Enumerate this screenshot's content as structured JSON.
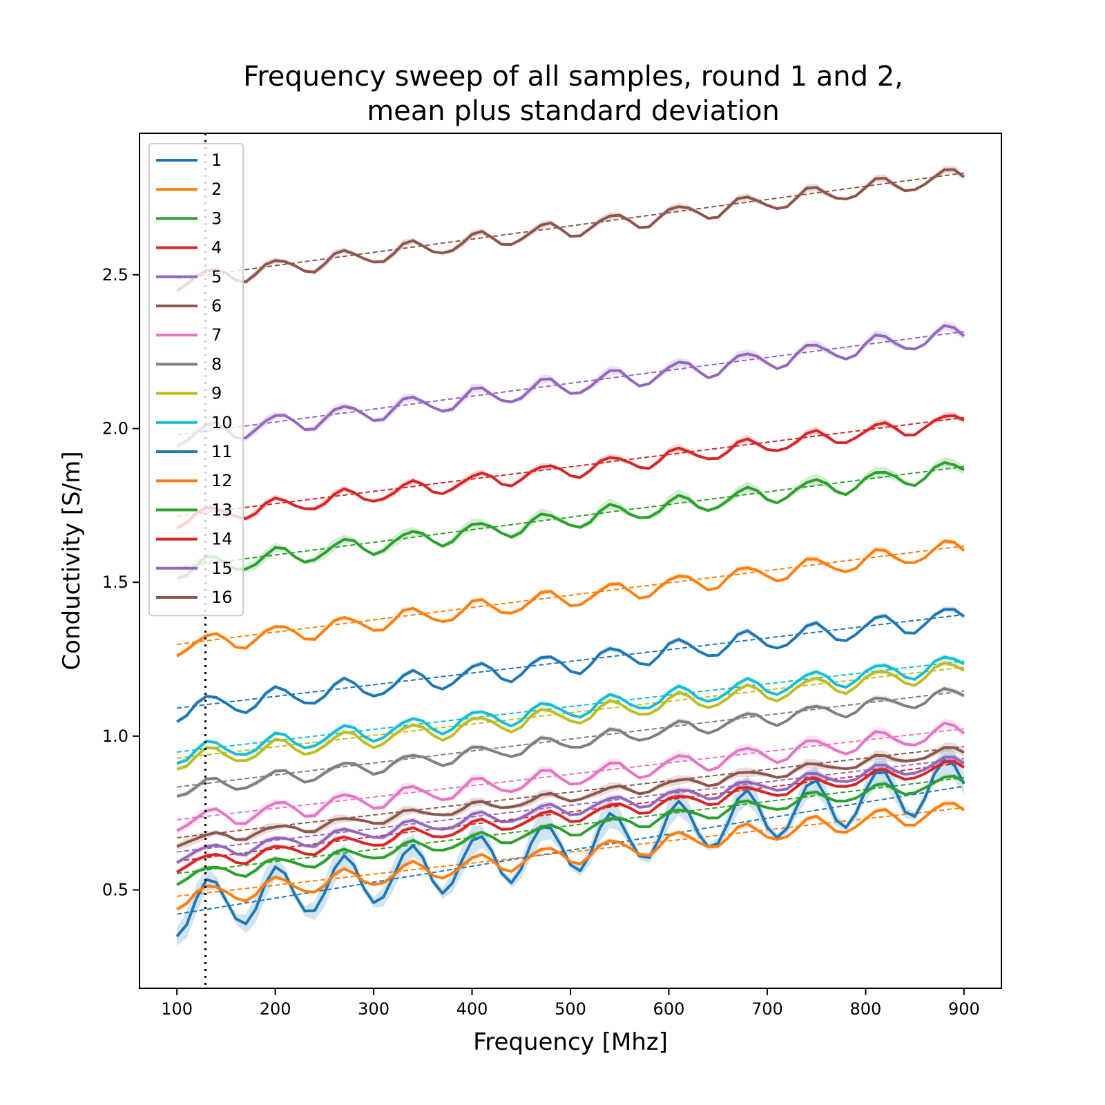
{
  "chart_data": {
    "type": "line",
    "title_lines": [
      "Frequency sweep of all samples, round 1 and 2,",
      "mean plus standard deviation"
    ],
    "xlabel": "Frequency [Mhz]",
    "ylabel": "Conductivity [S/m]",
    "xlim": [
      62,
      938
    ],
    "ylim": [
      0.18,
      2.96
    ],
    "xticks": [
      100,
      200,
      300,
      400,
      500,
      600,
      700,
      800,
      900
    ],
    "yticks": [
      0.5,
      1.0,
      1.5,
      2.0,
      2.5
    ],
    "xtick_labels": [
      "100",
      "200",
      "300",
      "400",
      "500",
      "600",
      "700",
      "800",
      "900"
    ],
    "ytick_labels": [
      "0.5",
      "1.0",
      "1.5",
      "2.0",
      "2.5"
    ],
    "vertical_marker_x": 129,
    "legend_position": "upper-left",
    "x_start": 100,
    "x_step": 10,
    "x_end": 900,
    "grid": false,
    "series": [
      {
        "name": "1",
        "color": "#1f77b4",
        "start": 0.35,
        "slope_per_100mhz": 0.052,
        "ripple": 0.085,
        "phase": 1.55,
        "std": 0.03
      },
      {
        "name": "2",
        "color": "#ff7f0e",
        "start": 0.44,
        "slope_per_100mhz": 0.036,
        "ripple": 0.032,
        "phase": 1.55,
        "std": 0.006
      },
      {
        "name": "3",
        "color": "#2ca02c",
        "start": 0.52,
        "slope_per_100mhz": 0.039,
        "ripple": 0.022,
        "phase": 1.55,
        "std": 0.006
      },
      {
        "name": "4",
        "color": "#d62728",
        "start": 0.56,
        "slope_per_100mhz": 0.04,
        "ripple": 0.022,
        "phase": 1.55,
        "std": 0.006
      },
      {
        "name": "5",
        "color": "#9467bd",
        "start": 0.59,
        "slope_per_100mhz": 0.038,
        "ripple": 0.022,
        "phase": 1.55,
        "std": 0.008
      },
      {
        "name": "6",
        "color": "#8c564b",
        "start": 0.64,
        "slope_per_100mhz": 0.037,
        "ripple": 0.016,
        "phase": 1.55,
        "std": 0.01
      },
      {
        "name": "7",
        "color": "#e377c2",
        "start": 0.69,
        "slope_per_100mhz": 0.037,
        "ripple": 0.03,
        "phase": 1.55,
        "std": 0.01
      },
      {
        "name": "8",
        "color": "#7f7f7f",
        "start": 0.8,
        "slope_per_100mhz": 0.039,
        "ripple": 0.024,
        "phase": 1.55,
        "std": 0.006
      },
      {
        "name": "9",
        "color": "#bcbd22",
        "start": 0.89,
        "slope_per_100mhz": 0.037,
        "ripple": 0.03,
        "phase": 1.55,
        "std": 0.006
      },
      {
        "name": "10",
        "color": "#17becf",
        "start": 0.91,
        "slope_per_100mhz": 0.037,
        "ripple": 0.03,
        "phase": 1.55,
        "std": 0.006
      },
      {
        "name": "11",
        "color": "#1f77b4",
        "start": 1.05,
        "slope_per_100mhz": 0.038,
        "ripple": 0.035,
        "phase": 1.55,
        "std": 0.006
      },
      {
        "name": "12",
        "color": "#ff7f0e",
        "start": 1.26,
        "slope_per_100mhz": 0.04,
        "ripple": 0.03,
        "phase": 1.55,
        "std": 0.006
      },
      {
        "name": "13",
        "color": "#2ca02c",
        "start": 1.51,
        "slope_per_100mhz": 0.041,
        "ripple": 0.03,
        "phase": 1.55,
        "std": 0.012
      },
      {
        "name": "14",
        "color": "#d62728",
        "start": 1.68,
        "slope_per_100mhz": 0.04,
        "ripple": 0.026,
        "phase": 1.55,
        "std": 0.008
      },
      {
        "name": "15",
        "color": "#9467bd",
        "start": 1.94,
        "slope_per_100mhz": 0.042,
        "ripple": 0.032,
        "phase": 1.55,
        "std": 0.01
      },
      {
        "name": "16",
        "color": "#8c564b",
        "start": 2.45,
        "slope_per_100mhz": 0.043,
        "ripple": 0.028,
        "phase": 1.55,
        "std": 0.008
      }
    ]
  }
}
